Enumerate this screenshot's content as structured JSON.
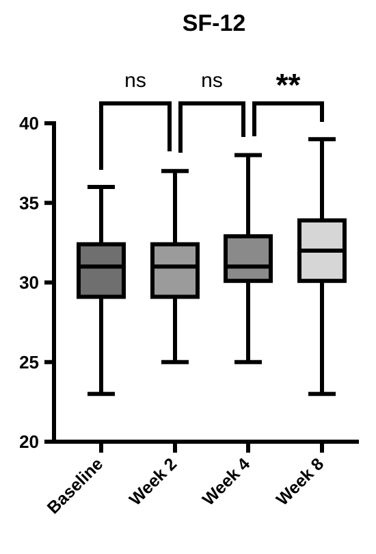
{
  "chart_data": {
    "type": "box",
    "title": "SF-12",
    "xlabel": "",
    "ylabel": "",
    "ylim": [
      20,
      40
    ],
    "yticks": [
      "20",
      "25",
      "30",
      "35",
      "40"
    ],
    "categories": [
      "Baseline",
      "Week 2",
      "Week 4",
      "Week 8"
    ],
    "boxes": [
      {
        "category": "Baseline",
        "min": 23,
        "q1": 29.1,
        "median": 31,
        "q3": 32.4,
        "max": 36,
        "color": "#6f6f6f"
      },
      {
        "category": "Week 2",
        "min": 25,
        "q1": 29.1,
        "median": 31,
        "q3": 32.4,
        "max": 37,
        "color": "#9b9b9b"
      },
      {
        "category": "Week 4",
        "min": 25,
        "q1": 30.1,
        "median": 31,
        "q3": 32.9,
        "max": 38,
        "color": "#8a8a8a"
      },
      {
        "category": "Week 8",
        "min": 23,
        "q1": 30.1,
        "median": 32,
        "q3": 33.9,
        "max": 39,
        "color": "#d6d6d6"
      }
    ],
    "comparisons": [
      {
        "from": "Baseline",
        "to": "Week 2",
        "label": "ns"
      },
      {
        "from": "Week 2",
        "to": "Week 4",
        "label": "ns"
      },
      {
        "from": "Week 4",
        "to": "Week 8",
        "label": "**"
      }
    ],
    "grid": false,
    "legend": "none"
  }
}
